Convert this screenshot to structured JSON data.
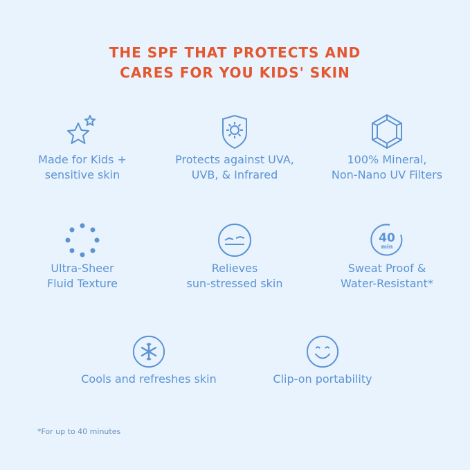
{
  "title": {
    "line1": "THE SPF THAT PROTECTS AND",
    "line2": "CARES FOR YOU KIDS' SKIN"
  },
  "features": [
    {
      "icon": "stars-icon",
      "line1": "Made for Kids +",
      "line2": "sensitive skin"
    },
    {
      "icon": "sun-shield-icon",
      "line1": "Protects against UVA,",
      "line2": "UVB, & Infrared"
    },
    {
      "icon": "gem-icon",
      "line1": "100% Mineral,",
      "line2": "Non-Nano UV Filters"
    },
    {
      "icon": "dots-circle-icon",
      "line1": "Ultra-Sheer",
      "line2": "Fluid Texture"
    },
    {
      "icon": "skin-wave-icon",
      "line1": "Relieves",
      "line2": "sun-stressed skin"
    },
    {
      "icon": "timer-40-icon",
      "line1": "Sweat Proof &",
      "line2": "Water-Resistant*",
      "badge_num": "40",
      "badge_unit": "min"
    },
    {
      "icon": "snowflake-icon",
      "line1": "Cools and refreshes skin"
    },
    {
      "icon": "smiley-icon",
      "line1": "Clip-on portability"
    }
  ],
  "footnote": "*For up to 40 minutes",
  "colors": {
    "background": "#e9f3fd",
    "title": "#e4572e",
    "text": "#5b93d3"
  }
}
